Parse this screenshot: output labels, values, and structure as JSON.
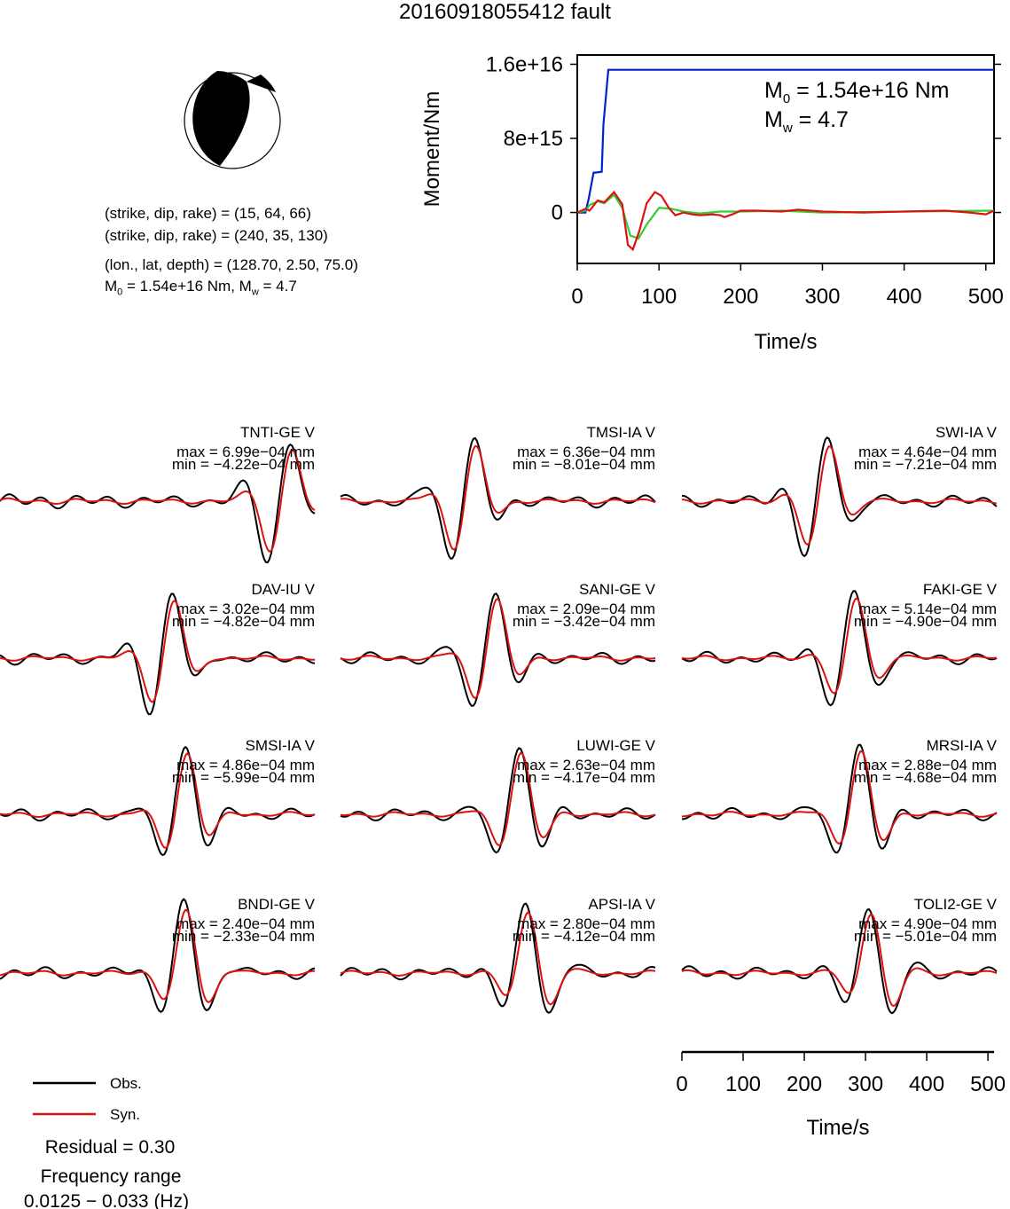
{
  "title": "20160918055412 fault",
  "beachball": {
    "planes": [
      {
        "label": "(strike, dip, rake) = (15, 64, 66)"
      },
      {
        "label": "(strike, dip, rake) = (240, 35, 130)"
      }
    ],
    "location": "(lon., lat, depth) = (128.70, 2.50, 75.0)",
    "magnitude_line": {
      "m0": "1.54e+16 Nm",
      "mw": "4.7"
    }
  },
  "moment_panel": {
    "m0_text": "1.54e+16 Nm",
    "mw_text": "4.7",
    "colors": {
      "moment": "#0022cc",
      "stf_a": "#33cc33",
      "stf_b": "#dd1111"
    }
  },
  "chart_data": [
    {
      "type": "line",
      "ylabel": "Moment/Nm",
      "xlabel": "Time/s",
      "xlim": [
        0,
        510
      ],
      "ylim": [
        -5500000000000000.0,
        1.7e+16
      ],
      "yticks": [
        0,
        8000000000000000.0,
        1.6e+16
      ],
      "ytick_labels": [
        "0",
        "8e+15",
        "1.6e+16"
      ],
      "xticks": [
        0,
        100,
        200,
        300,
        400,
        500
      ],
      "xtick_labels": [
        "0",
        "100",
        "200",
        "300",
        "400",
        "500"
      ],
      "series": [
        {
          "color": "#0022cc",
          "x": [
            0,
            10,
            14,
            20,
            22,
            30,
            32,
            38,
            40,
            510
          ],
          "y": [
            0,
            0,
            1500000000000000.0,
            4300000000000000.0,
            4300000000000000.0,
            4400000000000000.0,
            9500000000000000.0,
            1.54e+16,
            1.54e+16,
            1.54e+16
          ]
        },
        {
          "color": "#33cc33",
          "x": [
            0,
            10,
            15,
            25,
            33,
            45,
            55,
            65,
            75,
            85,
            100,
            115,
            130,
            150,
            175,
            200,
            250,
            300,
            400,
            510
          ],
          "y": [
            0,
            200000000000000.0,
            800000000000000.0,
            1200000000000000.0,
            1000000000000000.0,
            1900000000000000.0,
            500000000000000.0,
            -2500000000000000.0,
            -2800000000000000.0,
            -1300000000000000.0,
            500000000000000.0,
            400000000000000.0,
            100000000000000.0,
            -100000000000000.0,
            100000000000000.0,
            100000000000000.0,
            200000000000000.0,
            0,
            100000000000000.0,
            200000000000000.0
          ]
        },
        {
          "color": "#dd1111",
          "x": [
            0,
            10,
            15,
            25,
            33,
            45,
            55,
            62,
            68,
            76,
            85,
            95,
            103,
            112,
            120,
            130,
            140,
            150,
            165,
            175,
            180,
            190,
            200,
            220,
            250,
            270,
            300,
            350,
            400,
            450,
            480,
            500,
            510
          ],
          "y": [
            0,
            400000000000000.0,
            200000000000000.0,
            1300000000000000.0,
            1100000000000000.0,
            2200000000000000.0,
            900000000000000.0,
            -3500000000000000.0,
            -4000000000000000.0,
            -2000000000000000.0,
            1000000000000000.0,
            2200000000000000.0,
            1800000000000000.0,
            500000000000000.0,
            -300000000000000.0,
            0,
            -200000000000000.0,
            -300000000000000.0,
            -200000000000000.0,
            -300000000000000.0,
            -500000000000000.0,
            -200000000000000.0,
            200000000000000.0,
            200000000000000.0,
            100000000000000.0,
            300000000000000.0,
            100000000000000.0,
            0,
            100000000000000.0,
            200000000000000.0,
            0,
            -200000000000000.0,
            200000000000000.0
          ]
        }
      ]
    },
    {
      "type": "line",
      "note_colors": {
        "obs": "#000000",
        "syn": "#dd1111"
      },
      "xlabel": "Time/s",
      "xlim": [
        0,
        510
      ],
      "xticks": [
        0,
        100,
        200,
        300,
        400,
        500
      ],
      "xtick_labels": [
        "0",
        "100",
        "200",
        "300",
        "400",
        "500"
      ],
      "stations": [
        {
          "name": "TNTI-GE V",
          "max": "6.99e−04 mm",
          "min": "−4.22e−04 mm",
          "peak": 470,
          "phase": 0.0
        },
        {
          "name": "TMSI-IA V",
          "max": "6.36e−04 mm",
          "min": "−8.01e−04 mm",
          "peak": 190,
          "phase": 0.6
        },
        {
          "name": "SWI-IA V",
          "max": "4.64e−04 mm",
          "min": "−7.21e−04 mm",
          "peak": 215,
          "phase": 1.2
        },
        {
          "name": "DAV-IU V",
          "max": "3.02e−04 mm",
          "min": "−4.82e−04 mm",
          "peak": 265,
          "phase": 1.8
        },
        {
          "name": "SANI-GE V",
          "max": "2.09e−04 mm",
          "min": "−3.42e−04 mm",
          "peak": 235,
          "phase": 2.4
        },
        {
          "name": "FAKI-GE V",
          "max": "5.14e−04 mm",
          "min": "−4.90e−04 mm",
          "peak": 270,
          "phase": 3.0
        },
        {
          "name": "SMSI-IA V",
          "max": "4.86e−04 mm",
          "min": "−5.99e−04 mm",
          "peak": 295,
          "phase": 3.6
        },
        {
          "name": "LUWI-GE V",
          "max": "2.63e−04 mm",
          "min": "−4.17e−04 mm",
          "peak": 285,
          "phase": 4.2
        },
        {
          "name": "MRSI-IA V",
          "max": "2.88e−04 mm",
          "min": "−4.68e−04 mm",
          "peak": 285,
          "phase": 4.8
        },
        {
          "name": "BNDI-GE V",
          "max": "2.40e−04 mm",
          "min": "−2.33e−04 mm",
          "peak": 300,
          "phase": 5.4
        },
        {
          "name": "APSI-IA V",
          "max": "2.80e−04 mm",
          "min": "−4.12e−04 mm",
          "peak": 305,
          "phase": 6.0
        },
        {
          "name": "TOLI2-GE V",
          "max": "4.90e−04 mm",
          "min": "−5.01e−04 mm",
          "peak": 310,
          "phase": 6.6
        }
      ]
    }
  ],
  "legend": {
    "obs_label": "Obs.",
    "syn_label": "Syn."
  },
  "residual": "Residual = 0.30",
  "frequency": {
    "heading": "Frequency range",
    "range": "0.0125 − 0.033 (Hz)"
  }
}
